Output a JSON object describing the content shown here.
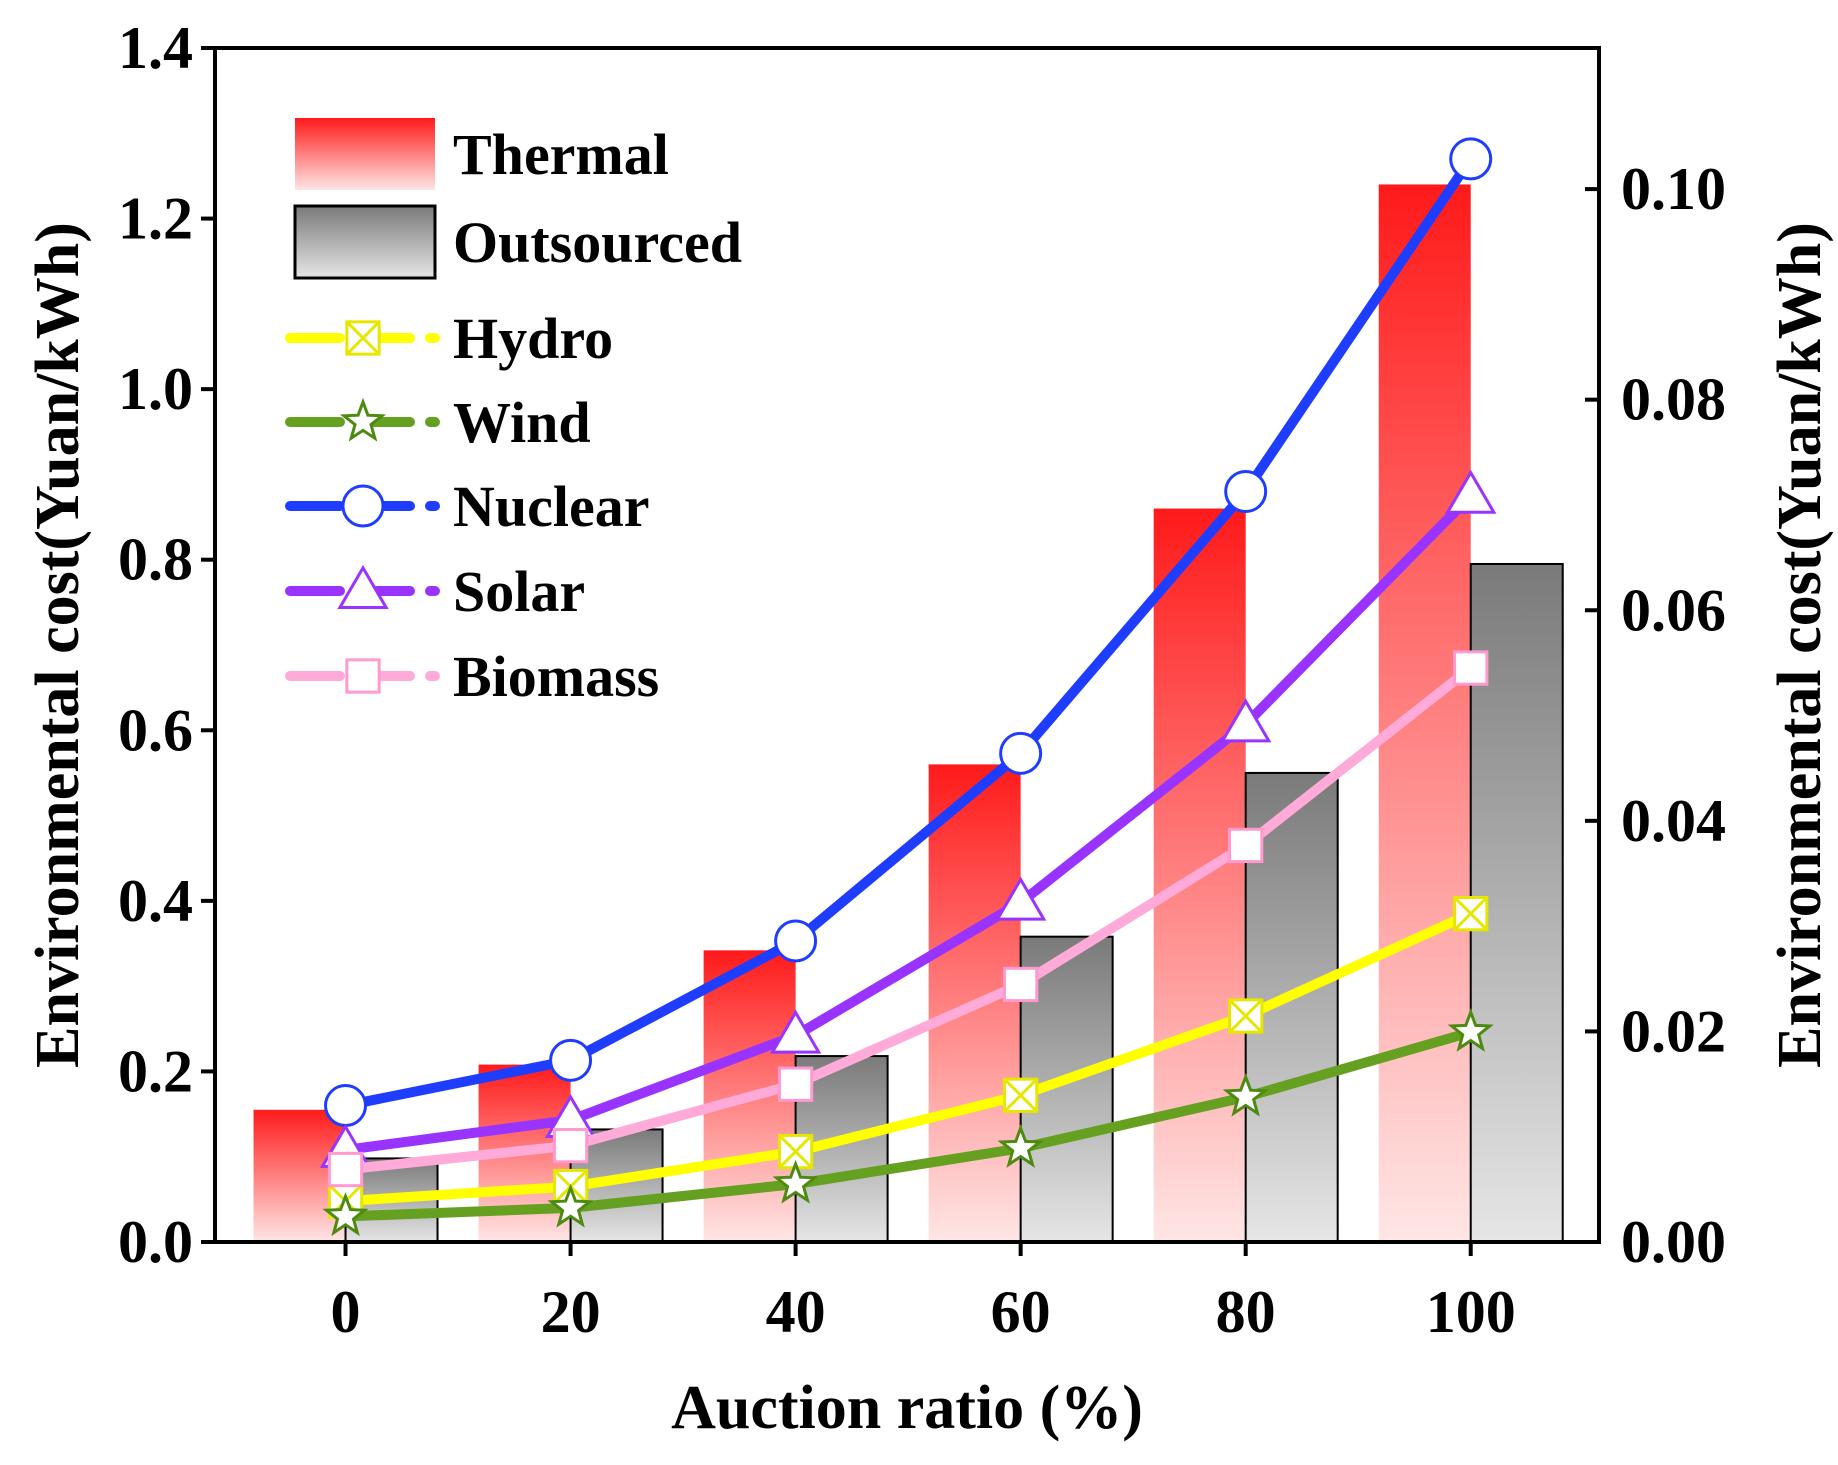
{
  "chart_data": {
    "type": "bar+line",
    "title": "",
    "xlabel": "Auction ratio (%)",
    "ylabel_left": "Environmental cost(Yuan/kWh)",
    "ylabel_right": "Environmental cost(Yuan/kWh)",
    "categories": [
      "0",
      "20",
      "40",
      "60",
      "80",
      "100"
    ],
    "ylim_left": [
      0,
      1.4
    ],
    "ylim_right": [
      0,
      0.1134
    ],
    "yticks_left": [
      "0.0",
      "0.2",
      "0.4",
      "0.6",
      "0.8",
      "1.0",
      "1.2",
      "1.4"
    ],
    "yticks_right": [
      "0.00",
      "0.02",
      "0.04",
      "0.06",
      "0.08",
      "0.10"
    ],
    "bars": [
      {
        "name": "Thermal",
        "axis": "left",
        "color_top": "#ff1a1a",
        "color_bottom": "#ffe6e6",
        "values": [
          0.155,
          0.208,
          0.342,
          0.56,
          0.86,
          1.24
        ]
      },
      {
        "name": "Outsourced",
        "axis": "left",
        "color_top": "#7a7a7a",
        "color_bottom": "#e6e6e6",
        "values": [
          0.098,
          0.132,
          0.218,
          0.358,
          0.55,
          0.795
        ]
      }
    ],
    "lines": [
      {
        "name": "Hydro",
        "axis": "left",
        "color": "#ffff00",
        "marker": "square-x",
        "marker_color": "#e6e600",
        "values": [
          0.048,
          0.065,
          0.106,
          0.172,
          0.265,
          0.385
        ]
      },
      {
        "name": "Wind",
        "axis": "left",
        "color": "#66a020",
        "marker": "star",
        "marker_color": "#4d8a10",
        "values": [
          0.03,
          0.04,
          0.068,
          0.11,
          0.17,
          0.246
        ]
      },
      {
        "name": "Nuclear",
        "axis": "left",
        "color": "#1f3dff",
        "marker": "circle",
        "marker_color": "#1f3dff",
        "values": [
          0.16,
          0.213,
          0.353,
          0.573,
          0.88,
          1.27
        ]
      },
      {
        "name": "Solar",
        "axis": "left",
        "color": "#9933ff",
        "marker": "triangle",
        "marker_color": "#9933ff",
        "values": [
          0.108,
          0.143,
          0.242,
          0.398,
          0.607,
          0.875
        ]
      },
      {
        "name": "Biomass",
        "axis": "left",
        "color": "#ffaad8",
        "marker": "square",
        "marker_color": "#ff99d0",
        "values": [
          0.085,
          0.113,
          0.185,
          0.302,
          0.465,
          0.673
        ]
      }
    ],
    "legend_position": "top-left"
  }
}
